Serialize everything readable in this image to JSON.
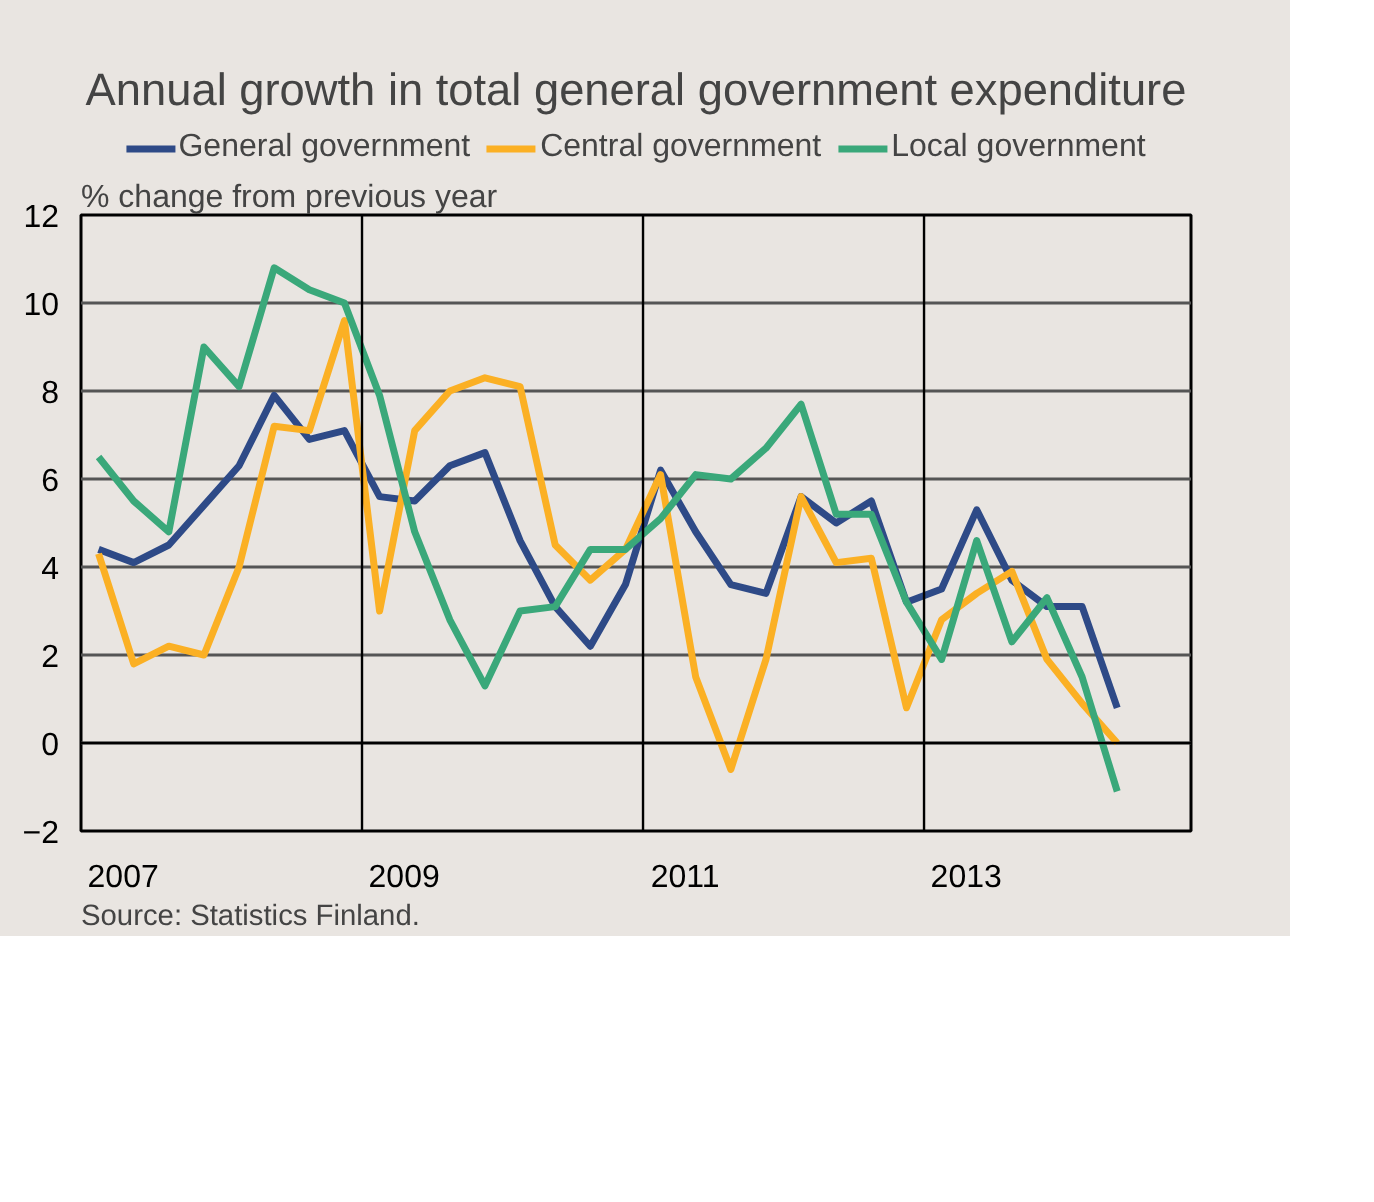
{
  "chart_data": {
    "type": "line",
    "title": "Annual growth in total general government expenditure",
    "ylabel": "% change from previous year",
    "x": [
      2007.125,
      2007.375,
      2007.625,
      2007.875,
      2008.125,
      2008.375,
      2008.625,
      2008.875,
      2009.125,
      2009.375,
      2009.625,
      2009.875,
      2010.125,
      2010.375,
      2010.625,
      2010.875,
      2011.125,
      2011.375,
      2011.625,
      2011.875,
      2012.125,
      2012.375,
      2012.625,
      2012.875,
      2013.125,
      2013.375,
      2013.625,
      2013.875,
      2014.125,
      2014.375
    ],
    "series": [
      {
        "name": "General government",
        "color": "#2e4a87",
        "values": [
          4.4,
          4.1,
          4.5,
          5.4,
          6.3,
          7.9,
          6.9,
          7.1,
          5.6,
          5.5,
          6.3,
          6.6,
          4.6,
          3.1,
          2.2,
          3.6,
          6.2,
          4.8,
          3.6,
          3.4,
          5.6,
          5.0,
          5.5,
          3.2,
          3.5,
          5.3,
          3.7,
          3.1,
          3.1,
          0.8
        ]
      },
      {
        "name": "Central government",
        "color": "#fbb024",
        "values": [
          4.3,
          1.8,
          2.2,
          2.0,
          4.0,
          7.2,
          7.1,
          9.6,
          3.0,
          7.1,
          8.0,
          8.3,
          8.1,
          4.5,
          3.7,
          4.4,
          6.1,
          1.5,
          -0.6,
          1.9,
          5.6,
          4.1,
          4.2,
          0.8,
          2.8,
          3.4,
          3.9,
          1.9,
          0.9,
          0.0
        ]
      },
      {
        "name": "Local government",
        "color": "#3aa87a",
        "values": [
          6.5,
          5.5,
          4.8,
          9.0,
          8.1,
          10.8,
          10.3,
          10.0,
          7.9,
          4.8,
          2.8,
          1.3,
          3.0,
          3.1,
          4.4,
          4.4,
          5.1,
          6.1,
          6.0,
          6.7,
          7.7,
          5.2,
          5.2,
          3.2,
          1.9,
          4.6,
          2.3,
          3.3,
          1.5,
          -1.1
        ]
      }
    ],
    "xlim": [
      2007,
      2014.9
    ],
    "ylim": [
      -2,
      12
    ],
    "yticks": [
      -2,
      0,
      2,
      4,
      6,
      8,
      10,
      12
    ],
    "xticks": [
      {
        "value": 2007.3,
        "label": "2007"
      },
      {
        "value": 2009.3,
        "label": "2009"
      },
      {
        "value": 2011.3,
        "label": "2011"
      },
      {
        "value": 2013.3,
        "label": "2013"
      }
    ],
    "ref_lines": [
      {
        "axis": "x",
        "value": 2009,
        "color": "#000000"
      },
      {
        "axis": "x",
        "value": 2011,
        "color": "#000000"
      },
      {
        "axis": "x",
        "value": 2013,
        "color": "#000000"
      },
      {
        "axis": "y",
        "value": 0,
        "color": "#000000"
      }
    ],
    "grid": "y",
    "legend": "top",
    "marker": "none",
    "line_style": "solid",
    "annotations": [
      "Source: Statistics Finland."
    ]
  }
}
